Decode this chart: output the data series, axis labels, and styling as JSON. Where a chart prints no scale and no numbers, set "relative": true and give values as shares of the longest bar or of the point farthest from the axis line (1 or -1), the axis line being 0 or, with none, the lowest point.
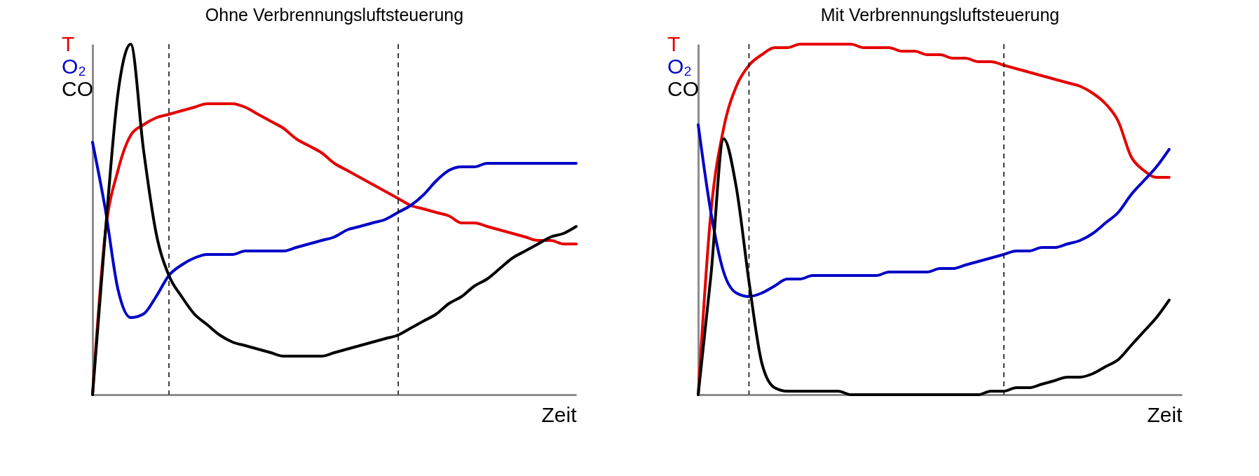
{
  "chart_data": [
    {
      "type": "line",
      "title": "Ohne Verbrennungsluftsteuerung",
      "xlabel": "Zeit",
      "relative": true,
      "legend": "top left",
      "categories": [
        null,
        null,
        null,
        null,
        null,
        null,
        null,
        null,
        null,
        null,
        null,
        null,
        null,
        null,
        null,
        null,
        null,
        null,
        null,
        null,
        null,
        null,
        null,
        null,
        null,
        null,
        null,
        null,
        null,
        null,
        null,
        null,
        null,
        null,
        null,
        null,
        null,
        null,
        null
      ],
      "series": [
        {
          "name": "T",
          "color": "#e60000",
          "values": [
            0,
            0.46,
            0.64,
            0.74,
            0.77,
            0.79,
            0.8,
            0.81,
            0.82,
            0.83,
            0.83,
            0.83,
            0.82,
            0.8,
            0.78,
            0.76,
            0.73,
            0.71,
            0.69,
            0.66,
            0.64,
            0.62,
            0.6,
            0.58,
            0.56,
            0.54,
            0.53,
            0.52,
            0.51,
            0.49,
            0.49,
            0.48,
            0.47,
            0.46,
            0.45,
            0.44,
            0.44,
            0.43,
            0.43
          ]
        },
        {
          "name": "O₂",
          "color": "#0000c8",
          "values": [
            0.72,
            0.53,
            0.3,
            0.22,
            0.23,
            0.28,
            0.34,
            0.37,
            0.39,
            0.4,
            0.4,
            0.4,
            0.41,
            0.41,
            0.41,
            0.41,
            0.42,
            0.43,
            0.44,
            0.45,
            0.47,
            0.48,
            0.49,
            0.5,
            0.52,
            0.54,
            0.57,
            0.61,
            0.64,
            0.65,
            0.65,
            0.66,
            0.66,
            0.66,
            0.66,
            0.66,
            0.66,
            0.66,
            0.66
          ]
        },
        {
          "name": "CO",
          "color": "#000000",
          "values": [
            0,
            0.46,
            0.86,
            1,
            0.7,
            0.46,
            0.34,
            0.28,
            0.23,
            0.2,
            0.17,
            0.15,
            0.14,
            0.13,
            0.12,
            0.11,
            0.11,
            0.11,
            0.11,
            0.12,
            0.13,
            0.14,
            0.15,
            0.16,
            0.17,
            0.19,
            0.21,
            0.23,
            0.26,
            0.28,
            0.31,
            0.33,
            0.36,
            0.39,
            0.41,
            0.43,
            0.45,
            0.46,
            0.48
          ]
        }
      ]
    },
    {
      "type": "line",
      "title": "Mit Verbrennungsluftsteuerung",
      "xlabel": "Zeit",
      "relative": true,
      "legend": "top left",
      "categories": [
        null,
        null,
        null,
        null,
        null,
        null,
        null,
        null,
        null,
        null,
        null,
        null,
        null,
        null,
        null,
        null,
        null,
        null,
        null,
        null,
        null,
        null,
        null,
        null,
        null,
        null,
        null,
        null,
        null,
        null,
        null,
        null,
        null,
        null,
        null,
        null,
        null,
        null,
        null
      ],
      "series": [
        {
          "name": "T",
          "color": "#e60000",
          "values": [
            0,
            0.52,
            0.76,
            0.88,
            0.94,
            0.97,
            0.99,
            0.99,
            1,
            1,
            1,
            1,
            1,
            0.99,
            0.99,
            0.99,
            0.98,
            0.98,
            0.97,
            0.97,
            0.96,
            0.96,
            0.95,
            0.95,
            0.94,
            0.93,
            0.92,
            0.91,
            0.9,
            0.89,
            0.88,
            0.86,
            0.83,
            0.78,
            0.68,
            0.64,
            0.62,
            0.62,
            null
          ]
        },
        {
          "name": "O₂",
          "color": "#0000c8",
          "values": [
            0.77,
            0.52,
            0.35,
            0.29,
            0.28,
            0.29,
            0.31,
            0.33,
            0.33,
            0.34,
            0.34,
            0.34,
            0.34,
            0.34,
            0.34,
            0.35,
            0.35,
            0.35,
            0.35,
            0.36,
            0.36,
            0.37,
            0.38,
            0.39,
            0.4,
            0.41,
            0.41,
            0.42,
            0.42,
            0.43,
            0.44,
            0.46,
            0.49,
            0.52,
            0.57,
            0.61,
            0.65,
            0.7,
            null
          ]
        },
        {
          "name": "CO",
          "color": "#000000",
          "values": [
            0,
            0.34,
            0.73,
            0.59,
            0.32,
            0.09,
            0.02,
            0.01,
            0.01,
            0.01,
            0.01,
            0.01,
            0,
            0,
            0,
            0,
            0,
            0,
            0,
            0,
            0,
            0,
            0,
            0.01,
            0.01,
            0.02,
            0.02,
            0.03,
            0.04,
            0.05,
            0.05,
            0.06,
            0.08,
            0.1,
            0.14,
            0.18,
            0.22,
            0.27,
            null
          ]
        }
      ]
    }
  ]
}
